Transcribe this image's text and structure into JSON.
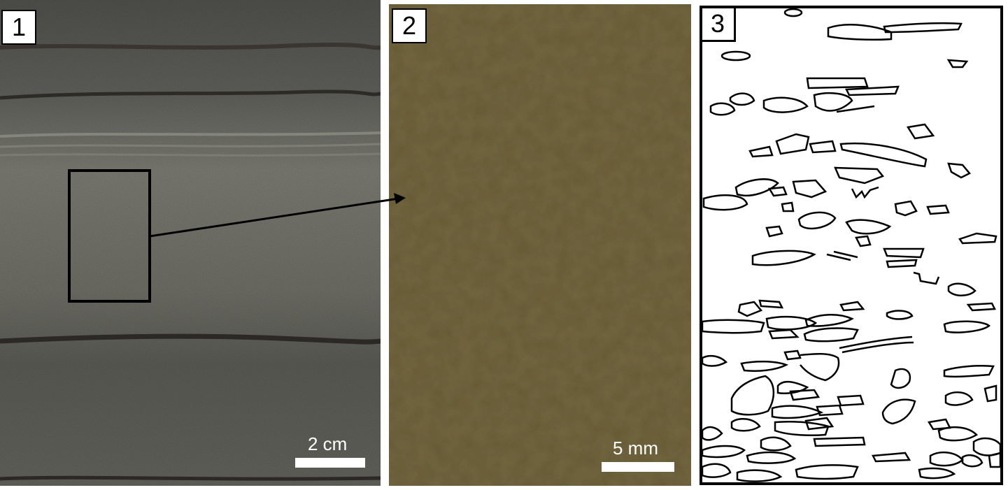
{
  "panels": [
    {
      "label": "1",
      "scale_text": "2 cm"
    },
    {
      "label": "2",
      "scale_text": "5 mm"
    },
    {
      "label": "3"
    }
  ],
  "colors": {
    "rock_gray": "#6d6d66",
    "rock_dark": "#3f3f3a",
    "thin_section": "#6a5f3c",
    "outline": "#000000"
  }
}
